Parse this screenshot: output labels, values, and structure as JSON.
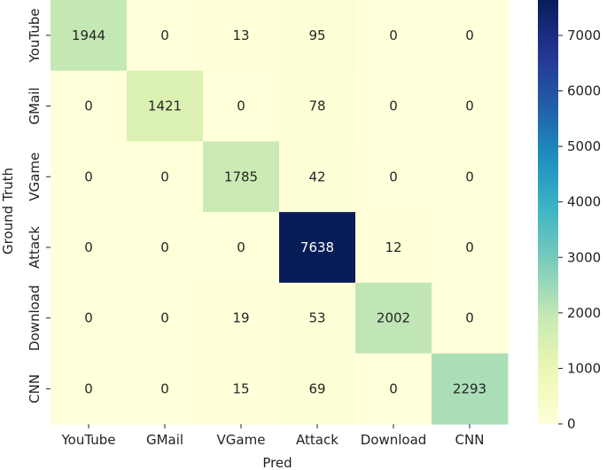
{
  "chart_data": {
    "type": "heatmap",
    "title": "",
    "xlabel": "Pred",
    "ylabel": "Ground Truth",
    "x_categories": [
      "YouTube",
      "GMail",
      "VGame",
      "Attack",
      "Download",
      "CNN"
    ],
    "y_categories": [
      "YouTube",
      "GMail",
      "VGame",
      "Attack",
      "Download",
      "CNN"
    ],
    "values": [
      [
        1944,
        0,
        13,
        95,
        0,
        0
      ],
      [
        0,
        1421,
        0,
        78,
        0,
        0
      ],
      [
        0,
        0,
        1785,
        42,
        0,
        0
      ],
      [
        0,
        0,
        0,
        7638,
        12,
        0
      ],
      [
        0,
        0,
        19,
        53,
        2002,
        0
      ],
      [
        0,
        0,
        15,
        69,
        0,
        2293
      ]
    ],
    "colormap": "YlGnBu",
    "colorbar": {
      "vmin": 0,
      "vmax": 7638,
      "ticks": [
        0,
        1000,
        2000,
        3000,
        4000,
        5000,
        6000,
        7000
      ]
    }
  }
}
